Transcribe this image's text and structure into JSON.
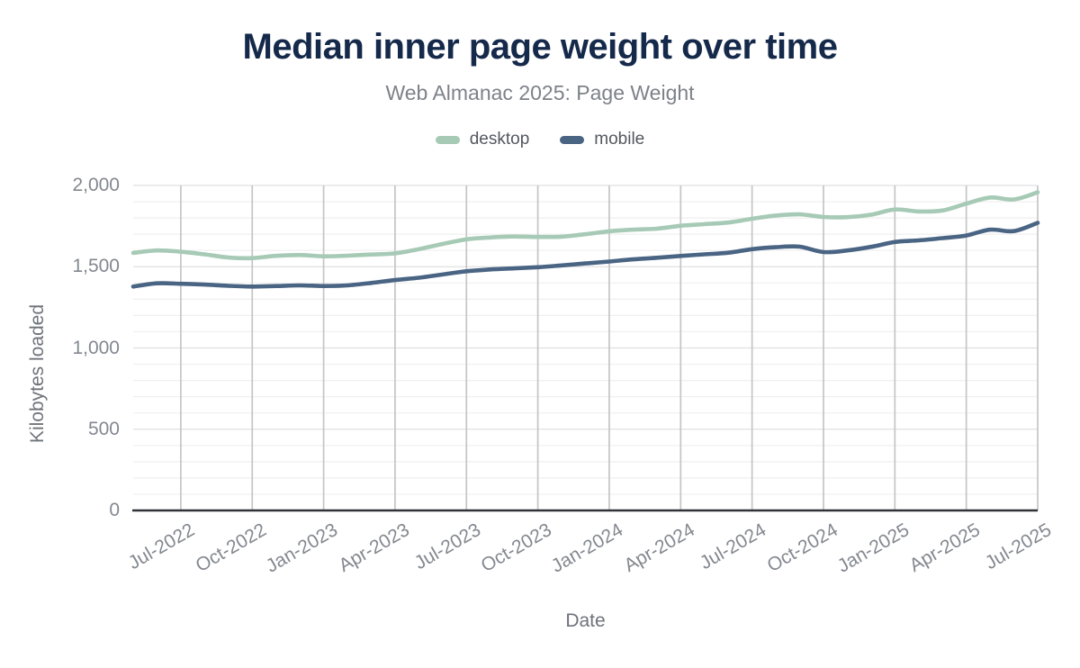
{
  "chart_data": {
    "type": "line",
    "title": "Median inner page weight over time",
    "subtitle": "Web Almanac 2025: Page Weight",
    "xlabel": "Date",
    "ylabel": "Kilobytes loaded",
    "ylim": [
      0,
      2000
    ],
    "y_tick_values": [
      0,
      500,
      1000,
      1500,
      2000
    ],
    "y_tick_labels": [
      "0",
      "500",
      "1,000",
      "1,500",
      "2,000"
    ],
    "x_tick_labels": [
      "Jul-2022",
      "Oct-2022",
      "Jan-2023",
      "Apr-2023",
      "Jul-2023",
      "Oct-2023",
      "Jan-2024",
      "Apr-2024",
      "Jul-2024",
      "Oct-2024",
      "Jan-2025",
      "Apr-2025",
      "Jul-2025"
    ],
    "x_tick_rotation": -30,
    "x": [
      "May-2022",
      "Jun-2022",
      "Jul-2022",
      "Aug-2022",
      "Sep-2022",
      "Oct-2022",
      "Nov-2022",
      "Dec-2022",
      "Jan-2023",
      "Feb-2023",
      "Mar-2023",
      "Apr-2023",
      "May-2023",
      "Jun-2023",
      "Jul-2023",
      "Aug-2023",
      "Sep-2023",
      "Oct-2023",
      "Nov-2023",
      "Dec-2023",
      "Jan-2024",
      "Feb-2024",
      "Mar-2024",
      "Apr-2024",
      "May-2024",
      "Jun-2024",
      "Jul-2024",
      "Aug-2024",
      "Sep-2024",
      "Oct-2024",
      "Nov-2024",
      "Dec-2024",
      "Jan-2025",
      "Feb-2025",
      "Mar-2025",
      "Apr-2025",
      "May-2025",
      "Jun-2025",
      "Jul-2025"
    ],
    "series": [
      {
        "name": "desktop",
        "color": "#a6cab5",
        "values": [
          1585,
          1600,
          1592,
          1576,
          1557,
          1553,
          1567,
          1572,
          1564,
          1568,
          1575,
          1582,
          1608,
          1640,
          1668,
          1680,
          1686,
          1683,
          1685,
          1700,
          1718,
          1728,
          1734,
          1752,
          1762,
          1772,
          1795,
          1815,
          1822,
          1806,
          1805,
          1820,
          1852,
          1840,
          1846,
          1888,
          1926,
          1914,
          1958
        ]
      },
      {
        "name": "mobile",
        "color": "#4a6584",
        "values": [
          1378,
          1398,
          1395,
          1390,
          1382,
          1378,
          1381,
          1385,
          1381,
          1385,
          1400,
          1418,
          1432,
          1452,
          1472,
          1483,
          1490,
          1497,
          1508,
          1520,
          1532,
          1545,
          1555,
          1566,
          1576,
          1586,
          1608,
          1620,
          1623,
          1590,
          1600,
          1622,
          1652,
          1662,
          1676,
          1692,
          1728,
          1719,
          1770
        ]
      }
    ],
    "grid": {
      "vertical_at_x_ticks": true,
      "horizontal_minor_step": 100,
      "horizontal_major_step": 500
    },
    "legend_position": "top-center"
  },
  "colors": {
    "title": "#15294b",
    "subtitle": "#7d8289",
    "tick_label": "#83888f",
    "axis_title": "#6e737a",
    "vertical_grid": "#c5c5c5",
    "horizontal_grid_major": "#e0e0e0",
    "horizontal_grid_minor": "#efefef",
    "axis_line": "#2f3338",
    "background": "#ffffff"
  }
}
